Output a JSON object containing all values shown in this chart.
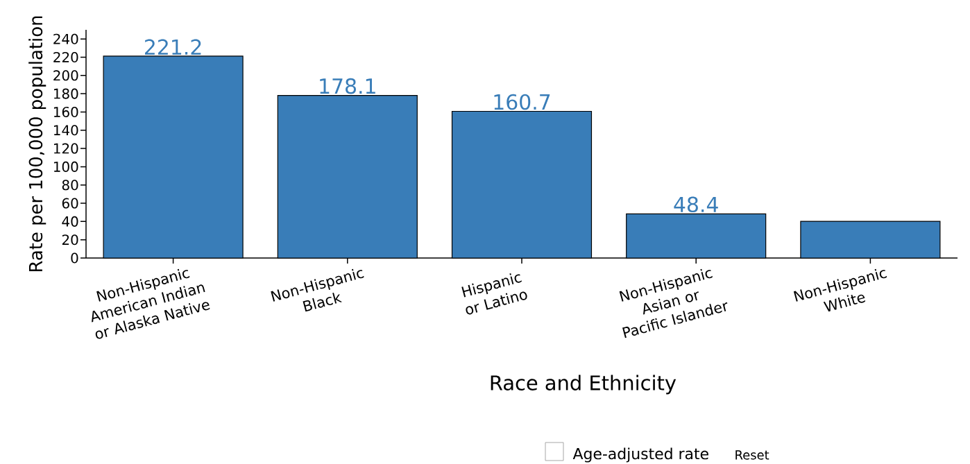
{
  "chart_data": {
    "type": "bar",
    "xlabel": "Race and Ethnicity",
    "ylabel": "Rate per 100,000 population",
    "categories": [
      "Non-Hispanic American Indian or Alaska Native",
      "Non-Hispanic Black",
      "Hispanic or Latino",
      "Non-Hispanic Asian or Pacific Islander",
      "Non-Hispanic White"
    ],
    "series": [
      {
        "color": "#397db8",
        "values": [
          221.2,
          178.1,
          160.7,
          48.4,
          40.2
        ],
        "value_labels": [
          "221.2",
          "178.1",
          "160.7",
          "48.4",
          null
        ]
      }
    ],
    "ylim": [
      0,
      250
    ],
    "yticks": [
      0,
      20,
      40,
      60,
      80,
      100,
      120,
      140,
      160,
      180,
      200,
      220,
      240
    ],
    "annotations": [
      "Age-adjusted rate",
      "Reset"
    ]
  }
}
